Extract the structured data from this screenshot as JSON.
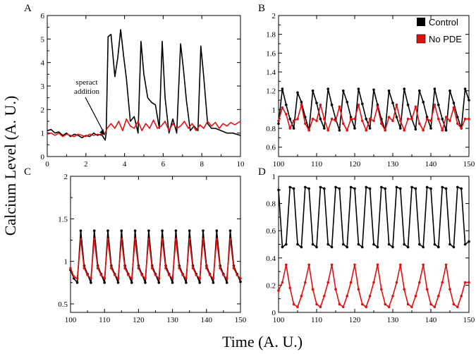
{
  "figure": {
    "ylabel": "Calcium Level (A. U.)",
    "xlabel": "Time (A. U.)"
  },
  "legend": {
    "entries": [
      {
        "label": "Control",
        "color": "#000000"
      },
      {
        "label": "No PDE",
        "color": "#e01010"
      }
    ],
    "placement": "top-right of panel B"
  },
  "chart_data": [
    {
      "panel": "A",
      "type": "line",
      "xlim": [
        0,
        10
      ],
      "ylim": [
        0,
        6
      ],
      "xticks": [
        0,
        2,
        4,
        6,
        8,
        10
      ],
      "yticks": [
        0,
        1,
        2,
        3,
        4,
        5,
        6
      ],
      "annotation": {
        "lines": [
          "speract",
          "addition"
        ],
        "arrow_to": [
          3.0,
          0.9
        ]
      },
      "series": [
        {
          "name": "Control",
          "color": "#000000",
          "markers": false,
          "x": [
            0.0,
            0.2,
            0.4,
            0.6,
            0.8,
            1.0,
            1.2,
            1.4,
            1.6,
            1.8,
            2.0,
            2.2,
            2.4,
            2.6,
            2.8,
            3.0,
            3.05,
            3.15,
            3.3,
            3.5,
            3.65,
            3.8,
            3.95,
            4.1,
            4.3,
            4.5,
            4.7,
            4.85,
            5.0,
            5.2,
            5.4,
            5.6,
            5.8,
            5.95,
            6.1,
            6.3,
            6.5,
            6.7,
            6.9,
            7.05,
            7.2,
            7.4,
            7.6,
            7.8,
            7.95,
            8.1,
            8.3,
            8.5,
            8.7,
            9.0,
            9.3,
            9.6,
            10.0
          ],
          "y": [
            1.1,
            1.15,
            1.0,
            1.05,
            0.9,
            1.0,
            0.85,
            0.95,
            0.9,
            0.8,
            0.9,
            0.85,
            1.0,
            0.9,
            0.95,
            0.7,
            1.0,
            5.1,
            5.2,
            3.4,
            4.2,
            5.4,
            4.3,
            3.3,
            1.5,
            1.7,
            1.0,
            4.9,
            3.5,
            2.5,
            2.3,
            2.2,
            1.2,
            4.9,
            2.5,
            1.0,
            1.6,
            1.0,
            4.8,
            3.7,
            2.4,
            1.1,
            1.3,
            1.1,
            4.7,
            3.4,
            1.4,
            1.2,
            1.2,
            1.1,
            1.0,
            1.0,
            0.9
          ]
        },
        {
          "name": "No PDE",
          "color": "#e01010",
          "markers": false,
          "x": [
            0.0,
            0.2,
            0.4,
            0.6,
            0.8,
            1.0,
            1.2,
            1.4,
            1.6,
            1.8,
            2.0,
            2.2,
            2.4,
            2.6,
            2.8,
            3.0,
            3.1,
            3.3,
            3.5,
            3.7,
            3.9,
            4.1,
            4.3,
            4.5,
            4.7,
            4.9,
            5.1,
            5.3,
            5.5,
            5.7,
            5.9,
            6.1,
            6.3,
            6.5,
            6.7,
            6.9,
            7.1,
            7.3,
            7.5,
            7.7,
            7.9,
            8.1,
            8.3,
            8.5,
            8.7,
            8.9,
            9.1,
            9.3,
            9.5,
            9.7,
            10.0
          ],
          "y": [
            0.95,
            1.0,
            0.9,
            1.0,
            0.85,
            0.95,
            0.9,
            0.85,
            0.95,
            0.9,
            0.85,
            0.95,
            0.9,
            0.95,
            0.9,
            1.0,
            1.2,
            1.4,
            1.2,
            1.5,
            1.1,
            1.6,
            1.3,
            1.2,
            1.5,
            1.1,
            1.4,
            1.2,
            1.55,
            1.2,
            1.3,
            1.5,
            1.1,
            1.4,
            1.2,
            1.3,
            1.5,
            1.2,
            1.4,
            1.1,
            1.35,
            1.2,
            1.5,
            1.3,
            1.45,
            1.2,
            1.4,
            1.3,
            1.45,
            1.35,
            1.5
          ]
        }
      ]
    },
    {
      "panel": "B",
      "type": "line",
      "xlim": [
        100,
        150
      ],
      "ylim": [
        0.5,
        2.0
      ],
      "xticks": [
        100,
        110,
        120,
        130,
        140,
        150
      ],
      "yticks": [
        0.6,
        0.8,
        1.0,
        1.2,
        1.4,
        1.6,
        1.8,
        2.0
      ],
      "series": [
        {
          "name": "Control",
          "color": "#000000",
          "markers": true,
          "x": [
            100,
            101,
            102,
            103,
            104,
            105,
            106,
            107,
            108,
            109,
            110,
            111,
            112,
            113,
            114,
            115,
            116,
            117,
            118,
            119,
            120,
            121,
            122,
            123,
            124,
            125,
            126,
            127,
            128,
            129,
            130,
            131,
            132,
            133,
            134,
            135,
            136,
            137,
            138,
            139,
            140,
            141,
            142,
            143,
            144,
            145,
            146,
            147,
            148,
            149,
            150
          ],
          "y": [
            0.85,
            1.22,
            1.05,
            0.9,
            0.8,
            1.18,
            1.08,
            0.92,
            0.78,
            1.2,
            1.07,
            0.9,
            0.8,
            1.22,
            1.05,
            0.9,
            0.78,
            1.2,
            1.08,
            0.92,
            0.8,
            1.22,
            1.06,
            0.9,
            0.8,
            1.21,
            1.05,
            0.9,
            0.78,
            1.2,
            1.07,
            0.92,
            0.8,
            1.22,
            1.05,
            0.9,
            0.79,
            1.2,
            1.08,
            0.92,
            0.8,
            1.22,
            1.05,
            0.9,
            0.78,
            1.2,
            1.07,
            0.92,
            0.8,
            1.22,
            1.1
          ]
        },
        {
          "name": "No PDE",
          "color": "#e01010",
          "markers": true,
          "x": [
            100,
            101,
            102,
            103,
            104,
            105,
            106,
            107,
            108,
            109,
            110,
            111,
            112,
            113,
            114,
            115,
            116,
            117,
            118,
            119,
            120,
            121,
            122,
            123,
            124,
            125,
            126,
            127,
            128,
            129,
            130,
            131,
            132,
            133,
            134,
            135,
            136,
            137,
            138,
            139,
            140,
            141,
            142,
            143,
            144,
            145,
            146,
            147,
            148,
            149,
            150
          ],
          "y": [
            0.88,
            1.02,
            0.95,
            0.8,
            0.88,
            0.9,
            1.05,
            0.85,
            0.78,
            0.9,
            0.88,
            1.05,
            0.9,
            0.78,
            0.9,
            0.88,
            1.03,
            0.85,
            0.78,
            0.9,
            0.9,
            1.05,
            0.88,
            0.78,
            0.9,
            0.88,
            1.03,
            0.85,
            0.78,
            0.92,
            0.88,
            1.05,
            0.88,
            0.78,
            0.9,
            0.9,
            1.03,
            0.85,
            0.78,
            0.9,
            0.88,
            1.05,
            0.9,
            0.78,
            0.92,
            0.88,
            1.02,
            0.85,
            0.8,
            0.9,
            0.9
          ]
        }
      ]
    },
    {
      "panel": "C",
      "type": "line",
      "xlim": [
        100,
        150
      ],
      "ylim": [
        0.4,
        2.0
      ],
      "xticks": [
        100,
        110,
        120,
        130,
        140,
        150
      ],
      "yticks": [
        0.5,
        1.0,
        1.5,
        2.0
      ],
      "series": [
        {
          "name": "Control",
          "color": "#000000",
          "markers": true,
          "x": [
            100,
            101,
            102,
            103,
            104,
            105,
            106,
            107,
            108,
            109,
            110,
            111,
            112,
            113,
            114,
            115,
            116,
            117,
            118,
            119,
            120,
            121,
            122,
            123,
            124,
            125,
            126,
            127,
            128,
            129,
            130,
            131,
            132,
            133,
            134,
            135,
            136,
            137,
            138,
            139,
            140,
            141,
            142,
            143,
            144,
            145,
            146,
            147,
            148,
            149,
            150
          ],
          "y": [
            0.9,
            0.8,
            0.75,
            1.36,
            0.95,
            0.85,
            0.75,
            1.36,
            0.95,
            0.85,
            0.75,
            1.36,
            0.95,
            0.85,
            0.75,
            1.36,
            0.95,
            0.85,
            0.75,
            1.36,
            0.95,
            0.85,
            0.75,
            1.36,
            0.95,
            0.85,
            0.75,
            1.36,
            0.95,
            0.85,
            0.75,
            1.36,
            0.95,
            0.85,
            0.75,
            1.36,
            0.95,
            0.85,
            0.75,
            1.36,
            0.95,
            0.85,
            0.75,
            1.36,
            0.95,
            0.85,
            0.75,
            1.36,
            0.95,
            0.85,
            0.76
          ]
        },
        {
          "name": "No PDE",
          "color": "#e01010",
          "markers": true,
          "x": [
            100,
            101,
            102,
            103,
            104,
            105,
            106,
            107,
            108,
            109,
            110,
            111,
            112,
            113,
            114,
            115,
            116,
            117,
            118,
            119,
            120,
            121,
            122,
            123,
            124,
            125,
            126,
            127,
            128,
            129,
            130,
            131,
            132,
            133,
            134,
            135,
            136,
            137,
            138,
            139,
            140,
            141,
            142,
            143,
            144,
            145,
            146,
            147,
            148,
            149,
            150
          ],
          "y": [
            0.92,
            0.82,
            0.8,
            1.26,
            0.92,
            0.84,
            0.8,
            1.26,
            0.92,
            0.84,
            0.8,
            1.26,
            0.92,
            0.84,
            0.8,
            1.26,
            0.92,
            0.84,
            0.8,
            1.26,
            0.92,
            0.84,
            0.8,
            1.26,
            0.92,
            0.84,
            0.8,
            1.26,
            0.92,
            0.84,
            0.8,
            1.26,
            0.92,
            0.84,
            0.8,
            1.26,
            0.92,
            0.84,
            0.8,
            1.26,
            0.92,
            0.84,
            0.8,
            1.26,
            0.92,
            0.84,
            0.8,
            1.26,
            0.92,
            0.84,
            0.8
          ]
        }
      ]
    },
    {
      "panel": "D",
      "type": "line",
      "xlim": [
        100,
        150
      ],
      "ylim": [
        0,
        1.0
      ],
      "xticks": [
        100,
        110,
        120,
        130,
        140,
        150
      ],
      "yticks": [
        0,
        0.2,
        0.4,
        0.6,
        0.8,
        1.0
      ],
      "series": [
        {
          "name": "Control",
          "color": "#000000",
          "markers": true,
          "x": [
            100,
            101,
            102,
            103,
            104,
            105,
            106,
            107,
            108,
            109,
            110,
            111,
            112,
            113,
            114,
            115,
            116,
            117,
            118,
            119,
            120,
            121,
            122,
            123,
            124,
            125,
            126,
            127,
            128,
            129,
            130,
            131,
            132,
            133,
            134,
            135,
            136,
            137,
            138,
            139,
            140,
            141,
            142,
            143,
            144,
            145,
            146,
            147,
            148,
            149,
            150
          ],
          "y": [
            0.9,
            0.48,
            0.5,
            0.92,
            0.91,
            0.5,
            0.48,
            0.92,
            0.91,
            0.5,
            0.48,
            0.92,
            0.91,
            0.5,
            0.48,
            0.92,
            0.91,
            0.5,
            0.48,
            0.92,
            0.91,
            0.5,
            0.48,
            0.92,
            0.91,
            0.5,
            0.48,
            0.92,
            0.91,
            0.5,
            0.48,
            0.92,
            0.91,
            0.5,
            0.48,
            0.92,
            0.91,
            0.5,
            0.48,
            0.92,
            0.91,
            0.5,
            0.48,
            0.92,
            0.91,
            0.5,
            0.48,
            0.92,
            0.91,
            0.5,
            0.52
          ]
        },
        {
          "name": "No PDE",
          "color": "#e01010",
          "markers": true,
          "x": [
            100,
            101,
            102,
            103,
            104,
            105,
            106,
            107,
            108,
            109,
            110,
            111,
            112,
            113,
            114,
            115,
            116,
            117,
            118,
            119,
            120,
            121,
            122,
            123,
            124,
            125,
            126,
            127,
            128,
            129,
            130,
            131,
            132,
            133,
            134,
            135,
            136,
            137,
            138,
            139,
            140,
            141,
            142,
            143,
            144,
            145,
            146,
            147,
            148,
            149,
            150
          ],
          "y": [
            0.16,
            0.22,
            0.35,
            0.18,
            0.06,
            0.04,
            0.12,
            0.22,
            0.35,
            0.17,
            0.06,
            0.04,
            0.12,
            0.22,
            0.35,
            0.17,
            0.06,
            0.04,
            0.12,
            0.22,
            0.35,
            0.17,
            0.06,
            0.04,
            0.12,
            0.22,
            0.35,
            0.17,
            0.06,
            0.04,
            0.12,
            0.22,
            0.35,
            0.17,
            0.06,
            0.04,
            0.12,
            0.22,
            0.35,
            0.17,
            0.06,
            0.04,
            0.12,
            0.22,
            0.35,
            0.17,
            0.06,
            0.04,
            0.12,
            0.22,
            0.22
          ]
        }
      ]
    }
  ]
}
